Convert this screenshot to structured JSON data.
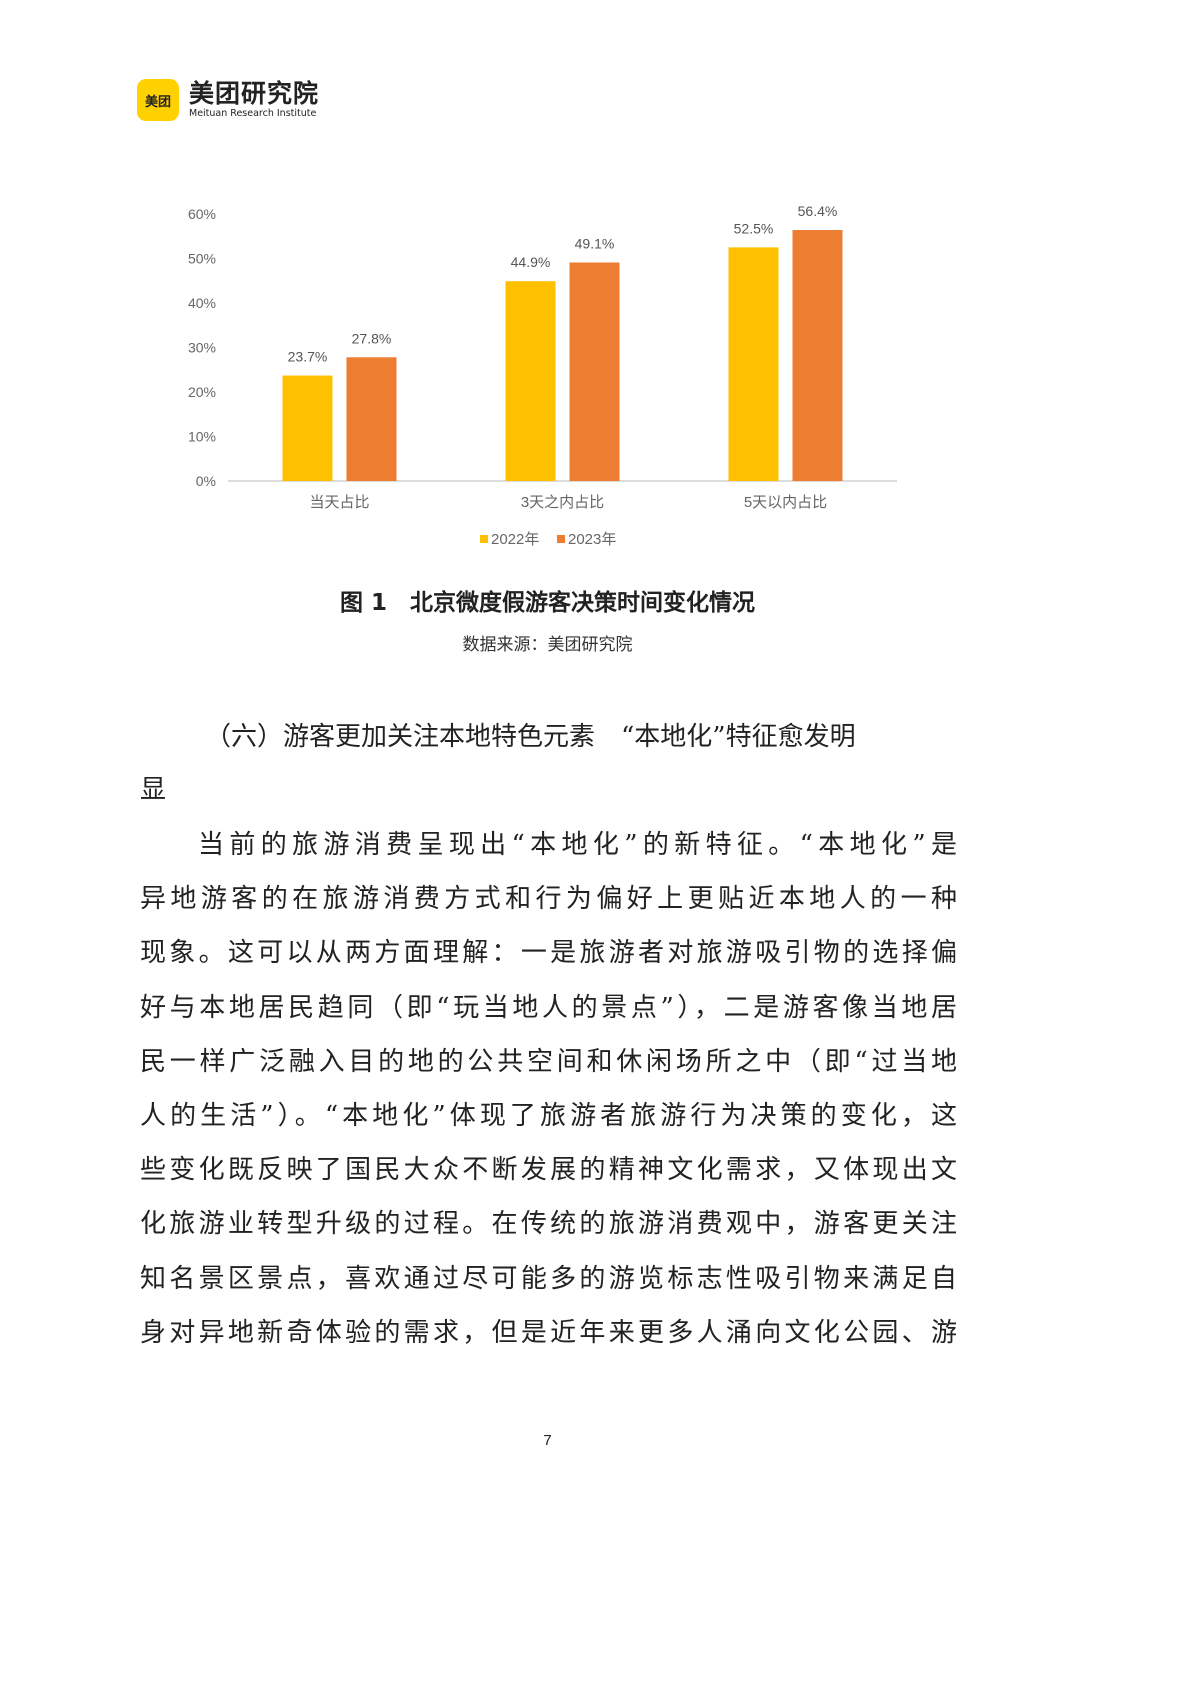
{
  "header": {
    "logo_badge_text": "美团",
    "logo_name": "美团研究院",
    "logo_subtitle": "Meituan Research Institute"
  },
  "chart_data": {
    "type": "bar",
    "categories": [
      "当天占比",
      "3天之内占比",
      "5天以内占比"
    ],
    "series": [
      {
        "name": "2022年",
        "values": [
          23.7,
          44.9,
          52.5
        ],
        "labels": [
          "23.7%",
          "44.9%",
          "52.5%"
        ],
        "color": "#FFC000"
      },
      {
        "name": "2023年",
        "values": [
          27.8,
          49.1,
          56.4
        ],
        "labels": [
          "27.8%",
          "49.1%",
          "56.4%"
        ],
        "color": "#ED7D31"
      }
    ],
    "y_ticks": [
      "0%",
      "10%",
      "20%",
      "30%",
      "40%",
      "50%",
      "60%"
    ],
    "ylim": [
      0,
      60
    ],
    "grid": false,
    "legend_position": "bottom"
  },
  "figure": {
    "caption": "图 1　北京微度假游客决策时间变化情况",
    "source": "数据来源：美团研究院"
  },
  "section": {
    "heading_lines": [
      "（六）游客更加关注本地特色元素　“本地化”特征愈发明",
      "显"
    ],
    "paragraph_lines": [
      "当前的旅游消费呈现出“本地化”的新特征。“本地化”是",
      "异地游客的在旅游消费方式和行为偏好上更贴近本地人的一种",
      "现象。这可以从两方面理解：一是旅游者对旅游吸引物的选择偏",
      "好与本地居民趋同（即“玩当地人的景点”），二是游客像当地居",
      "民一样广泛融入目的地的公共空间和休闲场所之中（即“过当地",
      "人的生活”）。“本地化”体现了旅游者旅游行为决策的变化，这",
      "些变化既反映了国民大众不断发展的精神文化需求，又体现出文",
      "化旅游业转型升级的过程。在传统的旅游消费观中，游客更关注",
      "知名景区景点，喜欢通过尽可能多的游览标志性吸引物来满足自",
      "身对异地新奇体验的需求，但是近年来更多人涌向文化公园、游"
    ]
  },
  "footer": {
    "page_number": "7"
  }
}
